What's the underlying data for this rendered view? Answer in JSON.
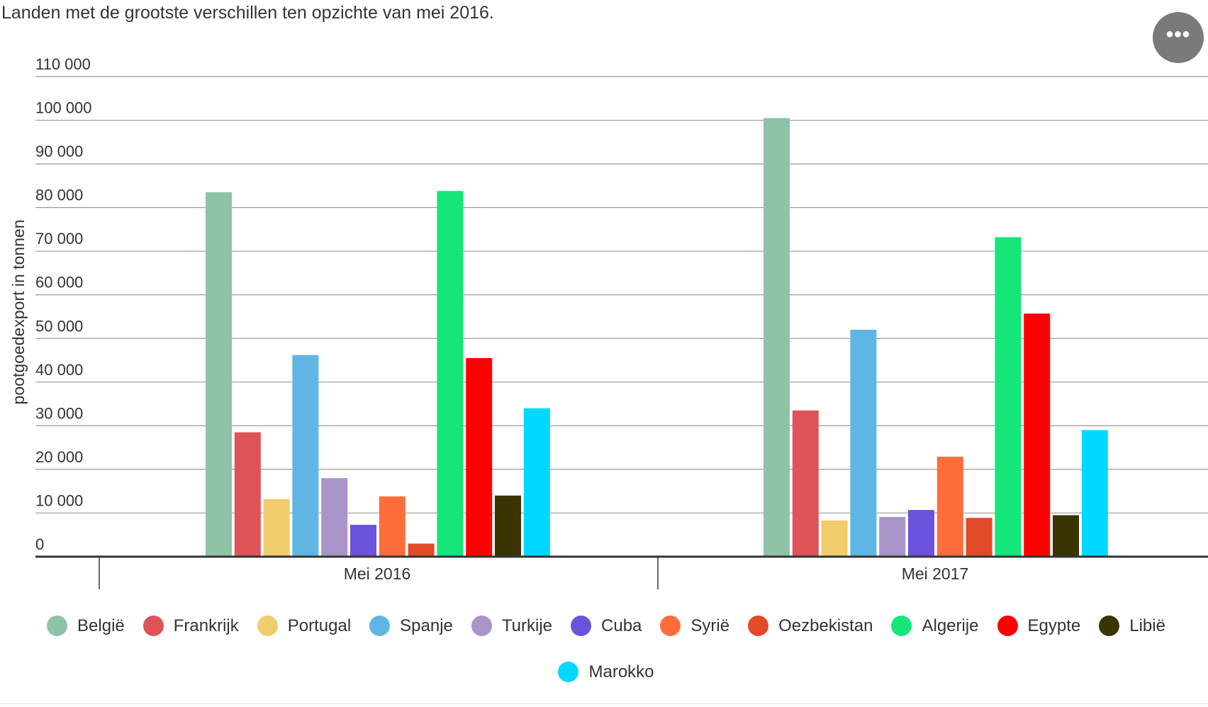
{
  "title": "Landen met de grootste verschillen ten opzichte van mei 2016.",
  "menu_icon": "more-horizontal-icon",
  "chart_data": {
    "type": "bar",
    "title": "Landen met de grootste verschillen ten opzichte van mei 2016.",
    "xlabel": "",
    "ylabel": "pootgoedexport in tonnen",
    "ylim": [
      0,
      110000
    ],
    "yticks": [
      {
        "value": 0,
        "label": "0"
      },
      {
        "value": 10000,
        "label": "10 000"
      },
      {
        "value": 20000,
        "label": "20 000"
      },
      {
        "value": 30000,
        "label": "30 000"
      },
      {
        "value": 40000,
        "label": "40 000"
      },
      {
        "value": 50000,
        "label": "50 000"
      },
      {
        "value": 60000,
        "label": "60 000"
      },
      {
        "value": 70000,
        "label": "70 000"
      },
      {
        "value": 80000,
        "label": "80 000"
      },
      {
        "value": 90000,
        "label": "90 000"
      },
      {
        "value": 100000,
        "label": "100 000"
      },
      {
        "value": 110000,
        "label": "110 000"
      }
    ],
    "grid": true,
    "legend_position": "bottom",
    "categories": [
      "Mei 2016",
      "Mei 2017"
    ],
    "series": [
      {
        "name": "België",
        "color": "#8fc3a6",
        "values": [
          83500,
          100500
        ]
      },
      {
        "name": "Frankrijk",
        "color": "#dd5357",
        "values": [
          28500,
          33500
        ]
      },
      {
        "name": "Portugal",
        "color": "#f0cc6b",
        "values": [
          13200,
          8300
        ]
      },
      {
        "name": "Spanje",
        "color": "#5fb6e4",
        "values": [
          46200,
          52000
        ]
      },
      {
        "name": "Turkije",
        "color": "#a994c9",
        "values": [
          18000,
          9100
        ]
      },
      {
        "name": "Cuba",
        "color": "#6c51dd",
        "values": [
          7300,
          10700
        ]
      },
      {
        "name": "Syrië",
        "color": "#ff6d3b",
        "values": [
          13800,
          22900
        ]
      },
      {
        "name": "Oezbekistan",
        "color": "#e4492a",
        "values": [
          3000,
          8900
        ]
      },
      {
        "name": "Algerije",
        "color": "#14e67a",
        "values": [
          83800,
          73200
        ]
      },
      {
        "name": "Egypte",
        "color": "#ff0000",
        "values": [
          45500,
          55700
        ]
      },
      {
        "name": "Libië",
        "color": "#3a3400",
        "values": [
          14000,
          9500
        ]
      },
      {
        "name": "Marokko",
        "color": "#00d8ff",
        "values": [
          34000,
          29000
        ]
      }
    ]
  }
}
